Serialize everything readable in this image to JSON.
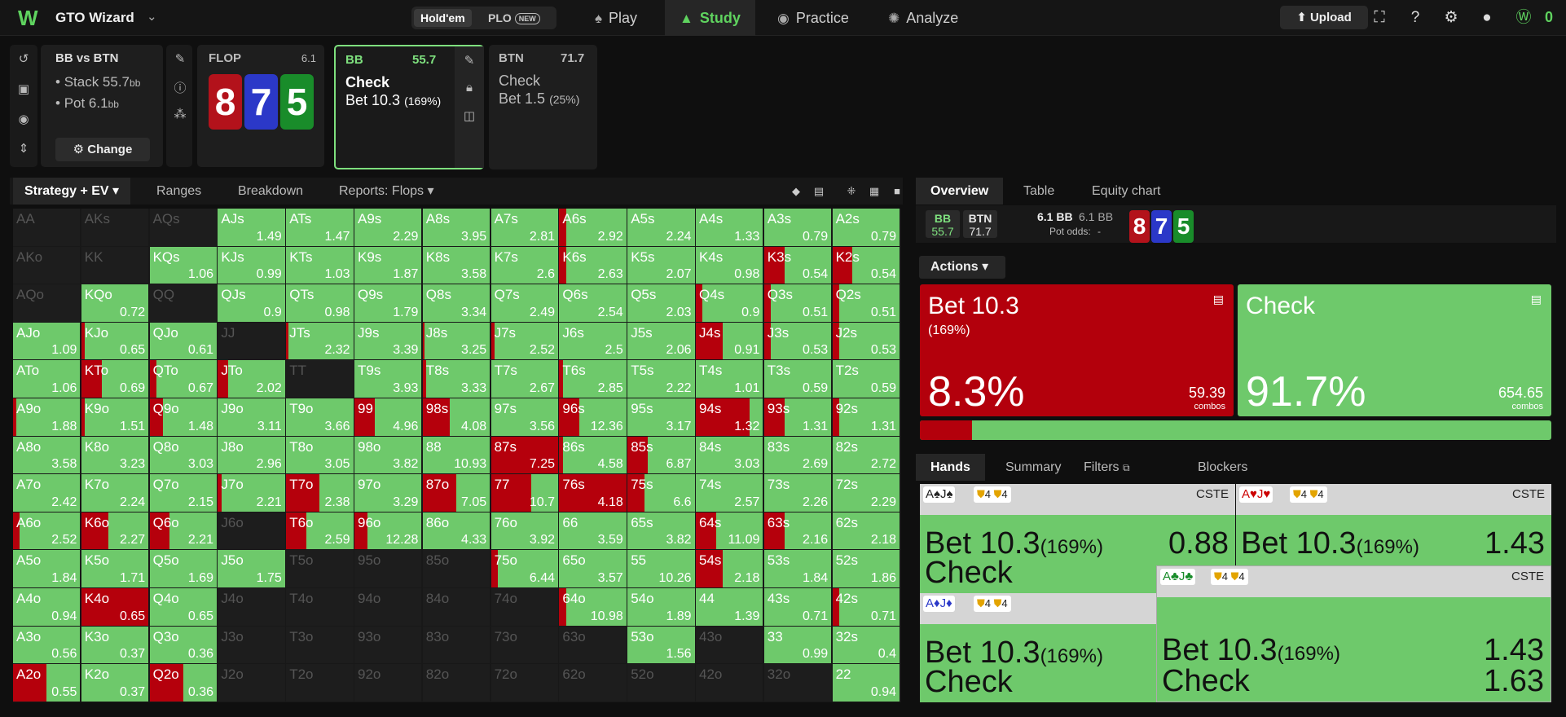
{
  "app": {
    "name": "GTO Wizard",
    "game_modes": [
      "Hold'em",
      "PLO"
    ],
    "new_badge": "NEW",
    "nav": [
      {
        "label": "Play",
        "icon": "cards-icon"
      },
      {
        "label": "Study",
        "icon": "graduation-cap-icon"
      },
      {
        "label": "Practice",
        "icon": "gamepad-icon"
      },
      {
        "label": "Analyze",
        "icon": "lightbulb-icon"
      }
    ],
    "upload_label": "Upload",
    "coins": "0"
  },
  "game": {
    "title": "BB vs BTN",
    "stack": "Stack 55.7",
    "pot": "Pot 6.1",
    "bb_unit": "bb",
    "change_label": "Change"
  },
  "flop": {
    "label": "FLOP",
    "pot": "6.1",
    "cards": [
      "8",
      "7",
      "5"
    ]
  },
  "nodes": [
    {
      "name": "BB",
      "value": "55.7",
      "actions": [
        {
          "label": "Check",
          "pct": ""
        },
        {
          "label": "Bet 10.3",
          "pct": "(169%)"
        }
      ]
    },
    {
      "name": "BTN",
      "value": "71.7",
      "actions": [
        {
          "label": "Check",
          "pct": ""
        },
        {
          "label": "Bet 1.5",
          "pct": "(25%)"
        }
      ]
    }
  ],
  "left_tabs": [
    "Strategy + EV",
    "Ranges",
    "Breakdown",
    "Reports: Flops"
  ],
  "right_tabs": [
    "Overview",
    "Table",
    "Equity chart"
  ],
  "info": {
    "bb": "BB",
    "bb_v": "55.7",
    "btn": "BTN",
    "btn_v": "71.7",
    "pot1": "6.1 BB",
    "pot2": "6.1 BB",
    "odds_label": "Pot odds:",
    "odds_v": "-"
  },
  "actions_label": "Actions",
  "action_cards": [
    {
      "name": "Bet 10.3",
      "sub": "(169%)",
      "pct": "8.3%",
      "combos": "59.39",
      "combos_label": "combos"
    },
    {
      "name": "Check",
      "sub": "",
      "pct": "91.7%",
      "combos": "654.65",
      "combos_label": "combos"
    }
  ],
  "bet_frequency": 0.083,
  "hand_tabs": [
    "Hands",
    "Summary",
    "Filters",
    "Blockers"
  ],
  "hand_cards": [
    {
      "cards": "A♠J♠",
      "blk": "4",
      "blk2": "4",
      "tag": "CSTE",
      "bet": "Bet 10.3",
      "bet_pct": "(169%)",
      "bet_v": "0.88",
      "check": "Check",
      "check_v": ""
    },
    {
      "cards": "A♥J♥",
      "blk": "4",
      "blk2": "4",
      "tag": "CSTE",
      "bet": "Bet 10.3",
      "bet_pct": "(169%)",
      "bet_v": "1.43",
      "check": "",
      "check_v": ""
    },
    {
      "cards": "A♦J♦",
      "blk": "4",
      "blk2": "4",
      "tag": "",
      "bet": "Bet 10.3",
      "bet_pct": "(169%)",
      "bet_v": "",
      "check": "Check",
      "check_v": ""
    },
    {
      "cards": "A♣J♣",
      "blk": "4",
      "blk2": "4",
      "tag": "CSTE",
      "bet": "Bet 10.3",
      "bet_pct": "(169%)",
      "bet_v": "1.43",
      "check": "Check",
      "check_v": "1.63"
    }
  ],
  "grid": [
    [
      [
        "AA",
        "",
        0,
        1
      ],
      [
        "AKs",
        "",
        0,
        1
      ],
      [
        "AQs",
        "",
        0,
        1
      ],
      [
        "AJs",
        "1.49",
        0,
        0
      ],
      [
        "ATs",
        "1.47",
        0,
        0
      ],
      [
        "A9s",
        "2.29",
        0,
        0
      ],
      [
        "A8s",
        "3.95",
        0,
        0
      ],
      [
        "A7s",
        "2.81",
        0,
        0
      ],
      [
        "A6s",
        "2.92",
        0.1,
        0
      ],
      [
        "A5s",
        "2.24",
        0,
        0
      ],
      [
        "A4s",
        "1.33",
        0,
        0
      ],
      [
        "A3s",
        "0.79",
        0,
        0
      ],
      [
        "A2s",
        "0.79",
        0,
        0
      ]
    ],
    [
      [
        "AKo",
        "",
        0,
        1
      ],
      [
        "KK",
        "",
        0,
        1
      ],
      [
        "KQs",
        "1.06",
        0,
        0
      ],
      [
        "KJs",
        "0.99",
        0,
        0
      ],
      [
        "KTs",
        "1.03",
        0,
        0
      ],
      [
        "K9s",
        "1.87",
        0,
        0
      ],
      [
        "K8s",
        "3.58",
        0,
        0
      ],
      [
        "K7s",
        "2.6",
        0,
        0
      ],
      [
        "K6s",
        "2.63",
        0.1,
        0
      ],
      [
        "K5s",
        "2.07",
        0,
        0
      ],
      [
        "K4s",
        "0.98",
        0,
        0
      ],
      [
        "K3s",
        "0.54",
        0.3,
        0
      ],
      [
        "K2s",
        "0.54",
        0.3,
        0
      ]
    ],
    [
      [
        "AQo",
        "",
        0,
        1
      ],
      [
        "KQo",
        "0.72",
        0,
        0
      ],
      [
        "QQ",
        "",
        0,
        1
      ],
      [
        "QJs",
        "0.9",
        0,
        0
      ],
      [
        "QTs",
        "0.98",
        0,
        0
      ],
      [
        "Q9s",
        "1.79",
        0,
        0
      ],
      [
        "Q8s",
        "3.34",
        0,
        0
      ],
      [
        "Q7s",
        "2.49",
        0,
        0
      ],
      [
        "Q6s",
        "2.54",
        0,
        0
      ],
      [
        "Q5s",
        "2.03",
        0,
        0
      ],
      [
        "Q4s",
        "0.9",
        0.1,
        0
      ],
      [
        "Q3s",
        "0.51",
        0.1,
        0
      ],
      [
        "Q2s",
        "0.51",
        0.1,
        0
      ]
    ],
    [
      [
        "AJo",
        "1.09",
        0,
        0
      ],
      [
        "KJo",
        "0.65",
        0.05,
        0
      ],
      [
        "QJo",
        "0.61",
        0,
        0
      ],
      [
        "JJ",
        "",
        0,
        1
      ],
      [
        "JTs",
        "2.32",
        0.03,
        0
      ],
      [
        "J9s",
        "3.39",
        0,
        0
      ],
      [
        "J8s",
        "3.25",
        0.03,
        0
      ],
      [
        "J7s",
        "2.52",
        0.05,
        0
      ],
      [
        "J6s",
        "2.5",
        0,
        0
      ],
      [
        "J5s",
        "2.06",
        0,
        0
      ],
      [
        "J4s",
        "0.91",
        0.4,
        0
      ],
      [
        "J3s",
        "0.53",
        0.1,
        0
      ],
      [
        "J2s",
        "0.53",
        0.1,
        0
      ]
    ],
    [
      [
        "ATo",
        "1.06",
        0,
        0
      ],
      [
        "KTo",
        "0.69",
        0.3,
        0
      ],
      [
        "QTo",
        "0.67",
        0.1,
        0
      ],
      [
        "JTo",
        "2.02",
        0.15,
        0
      ],
      [
        "TT",
        "",
        0,
        1
      ],
      [
        "T9s",
        "3.93",
        0,
        0
      ],
      [
        "T8s",
        "3.33",
        0.05,
        0
      ],
      [
        "T7s",
        "2.67",
        0,
        0
      ],
      [
        "T6s",
        "2.85",
        0.05,
        0
      ],
      [
        "T5s",
        "2.22",
        0,
        0
      ],
      [
        "T4s",
        "1.01",
        0,
        0
      ],
      [
        "T3s",
        "0.59",
        0,
        0
      ],
      [
        "T2s",
        "0.59",
        0,
        0
      ]
    ],
    [
      [
        "A9o",
        "1.88",
        0.05,
        0
      ],
      [
        "K9o",
        "1.51",
        0.05,
        0
      ],
      [
        "Q9o",
        "1.48",
        0.2,
        0
      ],
      [
        "J9o",
        "3.11",
        0,
        0
      ],
      [
        "T9o",
        "3.66",
        0,
        0
      ],
      [
        "99",
        "4.96",
        0.3,
        0
      ],
      [
        "98s",
        "4.08",
        0.4,
        0
      ],
      [
        "97s",
        "3.56",
        0,
        0
      ],
      [
        "96s",
        "12.36",
        0.3,
        0
      ],
      [
        "95s",
        "3.17",
        0,
        0
      ],
      [
        "94s",
        "1.32",
        0.8,
        0
      ],
      [
        "93s",
        "1.31",
        0.3,
        0
      ],
      [
        "92s",
        "1.31",
        0.1,
        0
      ]
    ],
    [
      [
        "A8o",
        "3.58",
        0,
        0
      ],
      [
        "K8o",
        "3.23",
        0,
        0
      ],
      [
        "Q8o",
        "3.03",
        0,
        0
      ],
      [
        "J8o",
        "2.96",
        0,
        0
      ],
      [
        "T8o",
        "3.05",
        0,
        0
      ],
      [
        "98o",
        "3.82",
        0,
        0
      ],
      [
        "88",
        "10.93",
        0,
        0
      ],
      [
        "87s",
        "7.25",
        1,
        0
      ],
      [
        "86s",
        "4.58",
        0.05,
        0
      ],
      [
        "85s",
        "6.87",
        0.3,
        0
      ],
      [
        "84s",
        "3.03",
        0,
        0
      ],
      [
        "83s",
        "2.69",
        0,
        0
      ],
      [
        "82s",
        "2.72",
        0,
        0
      ]
    ],
    [
      [
        "A7o",
        "2.42",
        0,
        0
      ],
      [
        "K7o",
        "2.24",
        0,
        0
      ],
      [
        "Q7o",
        "2.15",
        0,
        0
      ],
      [
        "J7o",
        "2.21",
        0.05,
        0
      ],
      [
        "T7o",
        "2.38",
        0.5,
        0
      ],
      [
        "97o",
        "3.29",
        0,
        0
      ],
      [
        "87o",
        "7.05",
        0.5,
        0
      ],
      [
        "77",
        "10.7",
        0.6,
        0
      ],
      [
        "76s",
        "4.18",
        1,
        0
      ],
      [
        "75s",
        "6.6",
        0.25,
        0
      ],
      [
        "74s",
        "2.57",
        0,
        0
      ],
      [
        "73s",
        "2.26",
        0,
        0
      ],
      [
        "72s",
        "2.29",
        0,
        0
      ]
    ],
    [
      [
        "A6o",
        "2.52",
        0.1,
        0
      ],
      [
        "K6o",
        "2.27",
        0.4,
        0
      ],
      [
        "Q6o",
        "2.21",
        0.3,
        0
      ],
      [
        "J6o",
        "",
        0,
        1
      ],
      [
        "T6o",
        "2.59",
        0.3,
        0
      ],
      [
        "96o",
        "12.28",
        0.2,
        0
      ],
      [
        "86o",
        "4.33",
        0,
        0
      ],
      [
        "76o",
        "3.92",
        0,
        0
      ],
      [
        "66",
        "3.59",
        0,
        0
      ],
      [
        "65s",
        "3.82",
        0,
        0
      ],
      [
        "64s",
        "11.09",
        0.3,
        0
      ],
      [
        "63s",
        "2.16",
        0.3,
        0
      ],
      [
        "62s",
        "2.18",
        0,
        0
      ]
    ],
    [
      [
        "A5o",
        "1.84",
        0,
        0
      ],
      [
        "K5o",
        "1.71",
        0,
        0
      ],
      [
        "Q5o",
        "1.69",
        0,
        0
      ],
      [
        "J5o",
        "1.75",
        0,
        0
      ],
      [
        "T5o",
        "",
        0,
        1
      ],
      [
        "95o",
        "",
        0,
        1
      ],
      [
        "85o",
        "",
        0,
        1
      ],
      [
        "75o",
        "6.44",
        0.1,
        0
      ],
      [
        "65o",
        "3.57",
        0,
        0
      ],
      [
        "55",
        "10.26",
        0,
        0
      ],
      [
        "54s",
        "2.18",
        0.4,
        0
      ],
      [
        "53s",
        "1.84",
        0,
        0
      ],
      [
        "52s",
        "1.86",
        0,
        0
      ]
    ],
    [
      [
        "A4o",
        "0.94",
        0,
        0
      ],
      [
        "K4o",
        "0.65",
        1,
        0
      ],
      [
        "Q4o",
        "0.65",
        0,
        0
      ],
      [
        "J4o",
        "",
        0,
        1
      ],
      [
        "T4o",
        "",
        0,
        1
      ],
      [
        "94o",
        "",
        0,
        1
      ],
      [
        "84o",
        "",
        0,
        1
      ],
      [
        "74o",
        "",
        0,
        1
      ],
      [
        "64o",
        "10.98",
        0.1,
        0
      ],
      [
        "54o",
        "1.89",
        0,
        0
      ],
      [
        "44",
        "1.39",
        0,
        0
      ],
      [
        "43s",
        "0.71",
        0,
        0
      ],
      [
        "42s",
        "0.71",
        0.1,
        0
      ]
    ],
    [
      [
        "A3o",
        "0.56",
        0,
        0
      ],
      [
        "K3o",
        "0.37",
        0,
        0
      ],
      [
        "Q3o",
        "0.36",
        0,
        0
      ],
      [
        "J3o",
        "",
        0,
        1
      ],
      [
        "T3o",
        "",
        0,
        1
      ],
      [
        "93o",
        "",
        0,
        1
      ],
      [
        "83o",
        "",
        0,
        1
      ],
      [
        "73o",
        "",
        0,
        1
      ],
      [
        "63o",
        "",
        0,
        1
      ],
      [
        "53o",
        "1.56",
        0,
        0
      ],
      [
        "43o",
        "",
        0,
        1
      ],
      [
        "33",
        "0.99",
        0,
        0
      ],
      [
        "32s",
        "0.4",
        0,
        0
      ]
    ],
    [
      [
        "A2o",
        "0.55",
        0.5,
        0
      ],
      [
        "K2o",
        "0.37",
        0,
        0
      ],
      [
        "Q2o",
        "0.36",
        0.5,
        0
      ],
      [
        "J2o",
        "",
        0,
        1
      ],
      [
        "T2o",
        "",
        0,
        1
      ],
      [
        "92o",
        "",
        0,
        1
      ],
      [
        "82o",
        "",
        0,
        1
      ],
      [
        "72o",
        "",
        0,
        1
      ],
      [
        "62o",
        "",
        0,
        1
      ],
      [
        "52o",
        "",
        0,
        1
      ],
      [
        "42o",
        "",
        0,
        1
      ],
      [
        "32o",
        "",
        0,
        1
      ],
      [
        "22",
        "0.94",
        0,
        0
      ]
    ]
  ]
}
